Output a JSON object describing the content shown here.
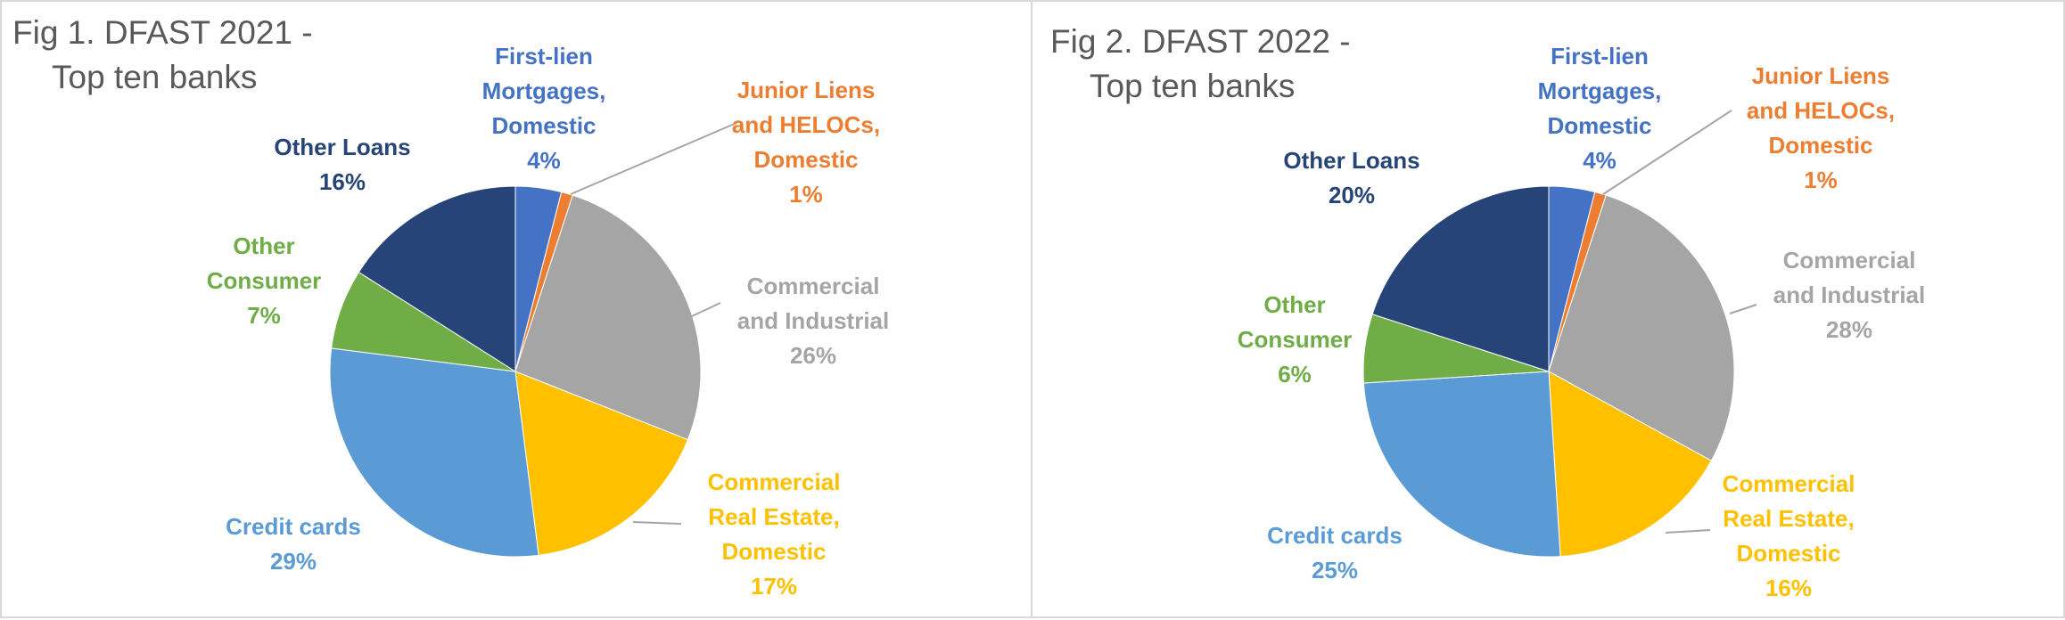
{
  "chart_data": [
    {
      "type": "pie",
      "title_line1": "Fig 1. DFAST 2021 -",
      "title_line2": "Top ten banks",
      "slices": [
        {
          "label": [
            "First-lien",
            "Mortgages,",
            "Domestic"
          ],
          "pct": "4%",
          "value": 4,
          "color": "#4472c4"
        },
        {
          "label": [
            "Junior Liens",
            "and HELOCs,",
            "Domestic"
          ],
          "pct": "1%",
          "value": 1,
          "color": "#ed7d31"
        },
        {
          "label": [
            "Commercial",
            "and Industrial"
          ],
          "pct": "26%",
          "value": 26,
          "color": "#a5a5a5"
        },
        {
          "label": [
            "Commercial",
            "Real Estate,",
            "Domestic"
          ],
          "pct": "17%",
          "value": 17,
          "color": "#ffc000"
        },
        {
          "label": [
            "Credit cards"
          ],
          "pct": "29%",
          "value": 29,
          "color": "#5b9bd5"
        },
        {
          "label": [
            "Other",
            "Consumer"
          ],
          "pct": "7%",
          "value": 7,
          "color": "#70ad47"
        },
        {
          "label": [
            "Other Loans"
          ],
          "pct": "16%",
          "value": 16,
          "color": "#264478"
        }
      ]
    },
    {
      "type": "pie",
      "title_line1": "Fig 2. DFAST 2022 -",
      "title_line2": "Top ten banks",
      "slices": [
        {
          "label": [
            "First-lien",
            "Mortgages,",
            "Domestic"
          ],
          "pct": "4%",
          "value": 4,
          "color": "#4472c4"
        },
        {
          "label": [
            "Junior Liens",
            "and HELOCs,",
            "Domestic"
          ],
          "pct": "1%",
          "value": 1,
          "color": "#ed7d31"
        },
        {
          "label": [
            "Commercial",
            "and Industrial"
          ],
          "pct": "28%",
          "value": 28,
          "color": "#a5a5a5"
        },
        {
          "label": [
            "Commercial",
            "Real Estate,",
            "Domestic"
          ],
          "pct": "16%",
          "value": 16,
          "color": "#ffc000"
        },
        {
          "label": [
            "Credit cards"
          ],
          "pct": "25%",
          "value": 25,
          "color": "#5b9bd5"
        },
        {
          "label": [
            "Other",
            "Consumer"
          ],
          "pct": "6%",
          "value": 6,
          "color": "#70ad47"
        },
        {
          "label": [
            "Other Loans"
          ],
          "pct": "20%",
          "value": 20,
          "color": "#264478"
        }
      ]
    }
  ],
  "leader_color": "#a5a5a5"
}
